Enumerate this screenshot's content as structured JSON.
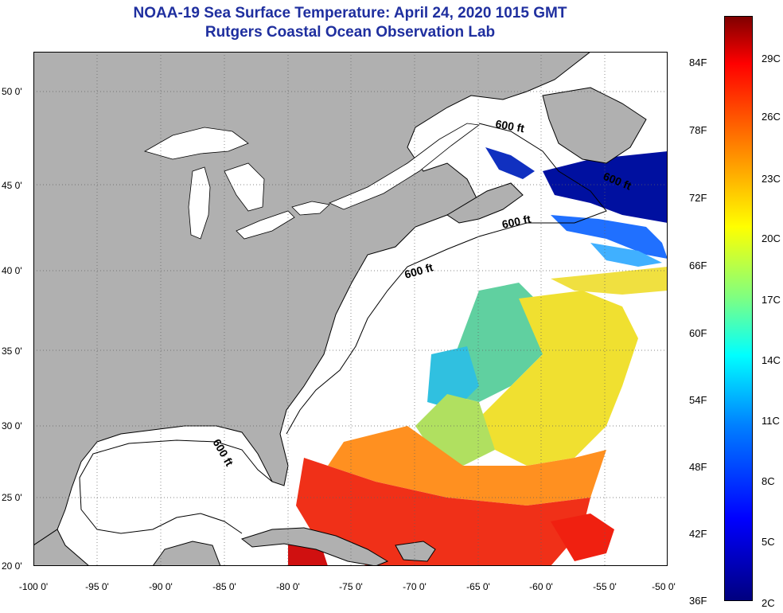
{
  "title": {
    "line1": "NOAA-19 Sea Surface Temperature:  April 24, 2020 1015 GMT",
    "line2": "Rutgers Coastal Ocean Observation Lab"
  },
  "map": {
    "latitude_labels": [
      "50 0'",
      "45 0'",
      "40 0'",
      "35 0'",
      "30 0'",
      "25 0'",
      "20 0'"
    ],
    "longitude_labels": [
      "-100 0'",
      "-95 0'",
      "-90 0'",
      "-85 0'",
      "-80 0'",
      "-75 0'",
      "-70 0'",
      "-65 0'",
      "-60 0'",
      "-55 0'",
      "-50 0'"
    ],
    "contour_labels": [
      "600 ft",
      "600 ft",
      "600 ft",
      "600 ft",
      "600 ft"
    ],
    "colors": {
      "land": "#b0b0b0",
      "ocean_no_data": "#ffffff",
      "coastline": "#000000",
      "grid": "#606060"
    }
  },
  "colorbar": {
    "fahrenheit_labels": [
      "84F",
      "78F",
      "72F",
      "66F",
      "60F",
      "54F",
      "48F",
      "42F",
      "36F"
    ],
    "celsius_labels": [
      "29C",
      "26C",
      "23C",
      "20C",
      "17C",
      "14C",
      "11C",
      "8C",
      "5C",
      "2C"
    ]
  }
}
